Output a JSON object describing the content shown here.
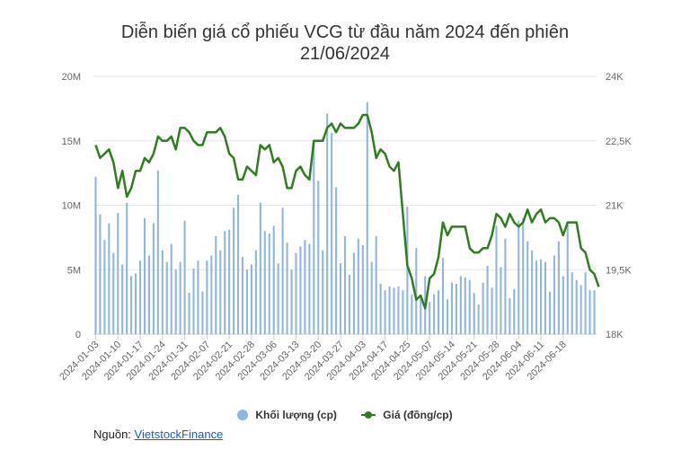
{
  "title_line1": "Diễn biến giá cổ phiếu VCG từ đầu năm 2024 đến phiên",
  "title_line2": "21/06/2024",
  "source": {
    "label": "Nguồn: ",
    "link_text": "VietstockFinance"
  },
  "colors": {
    "volume": "#90b5e0",
    "price": "#2e7d1e",
    "grid": "#e6e6e6"
  },
  "chart_data": {
    "type": "bar+line",
    "title": "Diễn biến giá cổ phiếu VCG từ đầu năm 2024 đến phiên 21/06/2024",
    "x_tick_labels": [
      "2024-01-03",
      "2024-01-10",
      "2024-01-17",
      "2024-01-24",
      "2024-01-31",
      "2024-02-07",
      "2024-02-21",
      "2024-02-28",
      "2024-03-06",
      "2024-03-13",
      "2024-03-20",
      "2024-03-27",
      "2024-04-03",
      "2024-04-17",
      "2024-04-25",
      "2024-05-07",
      "2024-05-14",
      "2024-05-21",
      "2024-05-28",
      "2024-06-04",
      "2024-06-11",
      "2024-06-18"
    ],
    "tick_every": 5,
    "left_axis": {
      "label": "Khối lượng (cp)",
      "ticks": [
        "0",
        "5M",
        "10M",
        "15M",
        "20M"
      ],
      "range": [
        0,
        20000000
      ]
    },
    "right_axis": {
      "label": "Giá (đồng/cp)",
      "ticks": [
        "18K",
        "19,5K",
        "21K",
        "22,5K",
        "24K"
      ],
      "range": [
        18000,
        24000
      ]
    },
    "legend_position": "bottom",
    "series": [
      {
        "name": "Khối lượng (cp)",
        "type": "bar",
        "axis": "left",
        "values": [
          12.2,
          9.3,
          7.3,
          8.6,
          6.3,
          9.4,
          5.4,
          10.2,
          4.5,
          4.7,
          5.7,
          9.0,
          6.1,
          8.6,
          12.7,
          6.5,
          5.6,
          7.0,
          5.0,
          5.6,
          8.8,
          3.2,
          5.1,
          5.7,
          3.3,
          5.7,
          6.1,
          7.6,
          6.5,
          8.0,
          8.1,
          9.8,
          10.8,
          6.0,
          5.0,
          5.4,
          6.5,
          10.2,
          8.0,
          7.8,
          8.4,
          5.5,
          9.8,
          7.1,
          5.0,
          6.3,
          6.8,
          7.3,
          7.0,
          14.7,
          11.9,
          6.5,
          17.1,
          15.6,
          11.4,
          5.5,
          7.6,
          4.6,
          6.3,
          7.4,
          6.9,
          18.0,
          5.6,
          7.6,
          3.9,
          3.4,
          3.7,
          3.6,
          3.7,
          3.4,
          9.9,
          3.1,
          6.7,
          2.8,
          4.5,
          2.5,
          3.1,
          3.4,
          5.9,
          2.7,
          4.0,
          3.9,
          4.5,
          4.4,
          4.2,
          3.2,
          2.3,
          4.0,
          5.3,
          3.6,
          8.4,
          5.2,
          7.4,
          2.8,
          3.5,
          8.8,
          9.0,
          7.2,
          6.5,
          5.7,
          5.8,
          5.6,
          3.3,
          6.1,
          7.2,
          4.5,
          8.5,
          4.8,
          4.2,
          3.8,
          4.8,
          3.4,
          3.4
        ]
      },
      {
        "name": "Giá (đồng/cp)",
        "type": "line",
        "axis": "right",
        "values": [
          22.4,
          22.1,
          22.2,
          22.3,
          22.0,
          21.4,
          21.8,
          21.2,
          21.4,
          21.8,
          21.8,
          22.1,
          22.0,
          22.2,
          22.6,
          22.5,
          22.5,
          22.6,
          22.3,
          22.8,
          22.8,
          22.7,
          22.5,
          22.4,
          22.4,
          22.7,
          22.7,
          22.7,
          22.8,
          22.6,
          22.2,
          22.1,
          21.6,
          21.6,
          21.9,
          21.8,
          21.7,
          22.4,
          22.3,
          22.4,
          22.0,
          22.1,
          21.9,
          21.4,
          21.4,
          21.8,
          21.9,
          21.7,
          21.6,
          22.5,
          22.5,
          22.5,
          22.8,
          22.9,
          22.7,
          22.9,
          22.8,
          22.8,
          22.8,
          22.9,
          23.1,
          23.1,
          22.7,
          22.1,
          22.3,
          22.2,
          21.9,
          21.8,
          22.0,
          20.8,
          19.6,
          19.3,
          18.8,
          18.9,
          18.6,
          19.3,
          19.4,
          19.8,
          20.6,
          20.3,
          20.5,
          20.5,
          20.5,
          20.5,
          20.0,
          19.9,
          19.9,
          20.0,
          20.0,
          20.3,
          20.8,
          20.7,
          20.5,
          20.8,
          20.6,
          20.5,
          20.6,
          20.9,
          20.6,
          20.8,
          20.9,
          20.6,
          20.7,
          20.7,
          20.6,
          20.3,
          20.6,
          20.6,
          20.6,
          20.0,
          19.9,
          19.5,
          19.4,
          19.1
        ]
      }
    ]
  }
}
